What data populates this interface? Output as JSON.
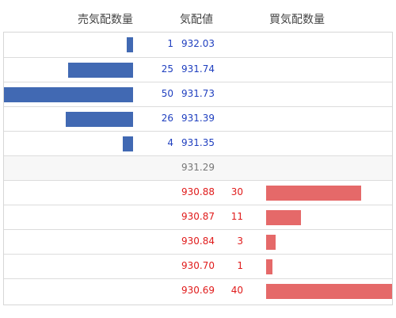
{
  "header": {
    "sell_label": "売気配数量",
    "price_label": "気配値",
    "buy_label": "買気配数量"
  },
  "max_quantity": 50,
  "asks": [
    {
      "qty": "1",
      "price": "932.03"
    },
    {
      "qty": "25",
      "price": "931.74"
    },
    {
      "qty": "50",
      "price": "931.73"
    },
    {
      "qty": "26",
      "price": "931.39"
    },
    {
      "qty": "4",
      "price": "931.35"
    }
  ],
  "mid": {
    "price": "931.29"
  },
  "bids": [
    {
      "qty": "30",
      "price": "930.88"
    },
    {
      "qty": "11",
      "price": "930.87"
    },
    {
      "qty": "3",
      "price": "930.84"
    },
    {
      "qty": "1",
      "price": "930.70"
    },
    {
      "qty": "40",
      "price": "930.69"
    }
  ],
  "colors": {
    "sell_bar": "#4169b3",
    "buy_bar": "#e56969",
    "ask_text": "#1f3fbf",
    "bid_text": "#e01b1b",
    "mid_text": "#777777"
  }
}
